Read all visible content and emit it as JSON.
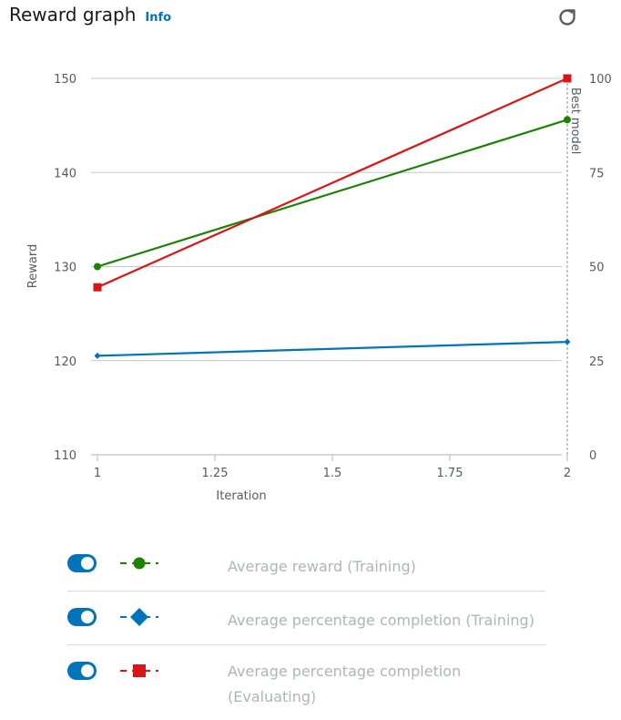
{
  "header": {
    "title": "Reward graph",
    "info_label": "Info",
    "refresh_icon": "refresh-icon"
  },
  "chart_data": {
    "type": "line",
    "xlabel": "Iteration",
    "ylabel": "Reward",
    "y2label": "Best model",
    "x_ticks": [
      "1",
      "1.25",
      "1.5",
      "1.75",
      "2"
    ],
    "y_ticks": [
      "110",
      "120",
      "130",
      "140",
      "150"
    ],
    "y2_ticks": [
      "0",
      "25",
      "50",
      "75",
      "100"
    ],
    "xlim": [
      1,
      2
    ],
    "ylim": [
      110,
      150
    ],
    "y2lim": [
      0,
      100
    ],
    "grid": true,
    "best_model_iteration": 2,
    "series": [
      {
        "name": "Average reward (Training)",
        "axis": "left",
        "marker": "circle",
        "color": "#1d8102",
        "x": [
          1,
          2
        ],
        "y": [
          130,
          145.6
        ]
      },
      {
        "name": "Average percentage completion (Training)",
        "axis": "right",
        "marker": "diamond",
        "color": "#0073bb",
        "x": [
          1,
          2
        ],
        "y": [
          26.3,
          30
        ]
      },
      {
        "name": "Average percentage completion (Evaluating)",
        "axis": "right",
        "marker": "square",
        "color": "#d91515",
        "x": [
          1,
          2
        ],
        "y": [
          44.5,
          100
        ]
      }
    ]
  },
  "legend": [
    {
      "label": "Average reward (Training)",
      "enabled": true,
      "marker": "circle",
      "color": "#1d8102"
    },
    {
      "label": "Average percentage completion (Training)",
      "enabled": true,
      "marker": "diamond",
      "color": "#0073bb"
    },
    {
      "label": "Average percentage completion (Evaluating)",
      "enabled": true,
      "marker": "square",
      "color": "#d91515"
    }
  ]
}
